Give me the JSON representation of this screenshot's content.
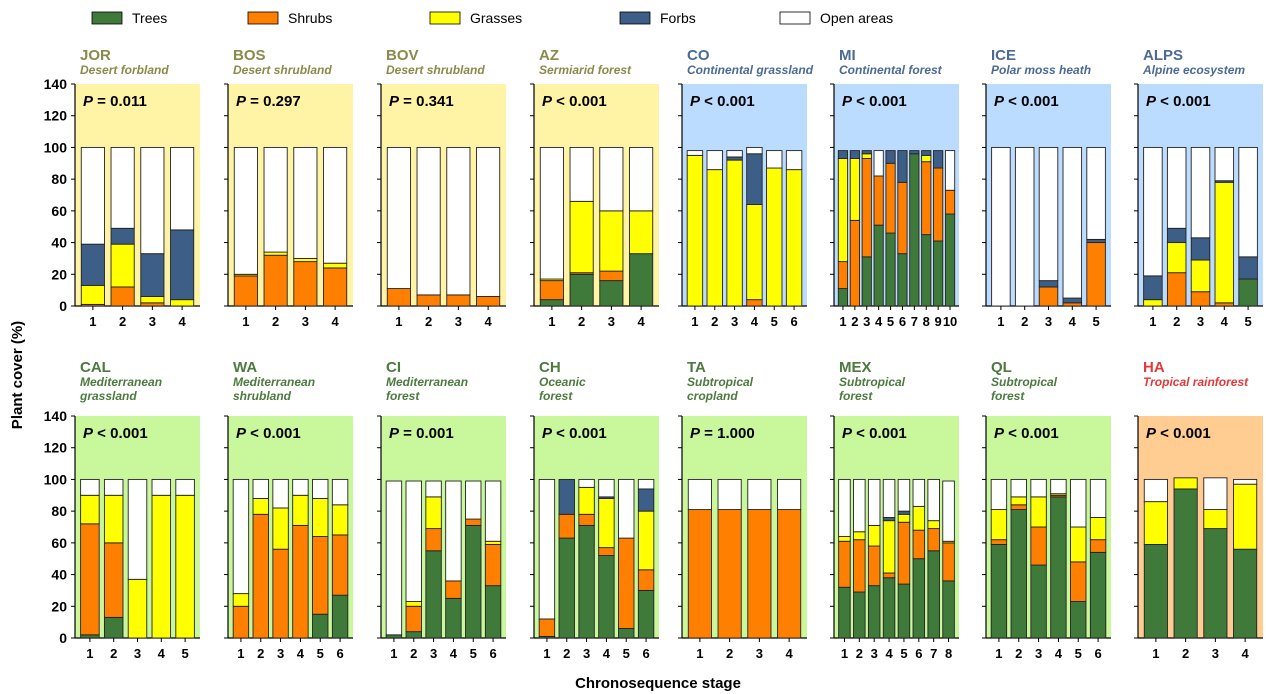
{
  "colors": {
    "Trees": "#3f7a3b",
    "Shrubs": "#ff7f00",
    "Grasses": "#ffff00",
    "Forbs": "#3d5e86",
    "Open areas": "#ffffff",
    "bg_desert": "#fff3a6",
    "bg_continental": "#bcdcff",
    "bg_med": "#c9f79b",
    "bg_tropical": "#ffcc92",
    "label_desert": "#8a8a4a",
    "label_continental": "#4c6a95",
    "label_med": "#4c7a3f",
    "label_tropical": "#e23a3a"
  },
  "legend": [
    "Trees",
    "Shrubs",
    "Grasses",
    "Forbs",
    "Open areas"
  ],
  "ylabel": "Plant cover (%)",
  "xlabel": "Chronosequence stage",
  "y_ticks": [
    "0",
    "20",
    "40",
    "60",
    "80",
    "100",
    "120",
    "140"
  ],
  "chart_data": {
    "type": "bar",
    "stacked": true,
    "ylim": [
      0,
      140
    ],
    "stack_order": [
      "Trees",
      "Shrubs",
      "Grasses",
      "Forbs",
      "Open areas"
    ],
    "panels": [
      {
        "code": "JOR",
        "desc": [
          "Desert forbland"
        ],
        "p": "0.011",
        "op": "=",
        "bg": "desert",
        "categories": [
          "1",
          "2",
          "3",
          "4"
        ],
        "bars": [
          [
            0,
            1,
            12,
            26,
            61
          ],
          [
            0,
            12,
            27,
            10,
            51
          ],
          [
            0,
            2,
            4,
            27,
            67
          ],
          [
            0,
            0,
            4,
            44,
            52
          ]
        ]
      },
      {
        "code": "BOS",
        "desc": [
          "Desert shrubland"
        ],
        "p": "0.297",
        "op": "=",
        "bg": "desert",
        "categories": [
          "1",
          "2",
          "3",
          "4"
        ],
        "bars": [
          [
            0,
            19,
            1,
            0,
            80
          ],
          [
            0,
            32,
            2,
            0,
            66
          ],
          [
            0,
            28,
            2,
            0,
            70
          ],
          [
            0,
            24,
            3,
            0,
            73
          ]
        ]
      },
      {
        "code": "BOV",
        "desc": [
          "Desert shrubland"
        ],
        "p": "0.341",
        "op": "=",
        "bg": "desert",
        "categories": [
          "1",
          "2",
          "3",
          "4"
        ],
        "bars": [
          [
            0,
            11,
            0,
            0,
            89
          ],
          [
            0,
            7,
            0,
            0,
            93
          ],
          [
            0,
            7,
            0,
            0,
            93
          ],
          [
            0,
            6,
            0,
            0,
            94
          ]
        ]
      },
      {
        "code": "AZ",
        "desc": [
          "Sermiarid forest"
        ],
        "p": "0.001",
        "op": "<",
        "bg": "desert",
        "categories": [
          "1",
          "2",
          "3",
          "4"
        ],
        "bars": [
          [
            4,
            12,
            1,
            0,
            83
          ],
          [
            20,
            1,
            45,
            0,
            34
          ],
          [
            16,
            6,
            38,
            0,
            40
          ],
          [
            33,
            0,
            27,
            0,
            40
          ]
        ]
      },
      {
        "code": "CO",
        "desc": [
          "Continental grassland"
        ],
        "p": "0.001",
        "op": "<",
        "bg": "continental",
        "categories": [
          "1",
          "2",
          "3",
          "4",
          "5",
          "6"
        ],
        "bars": [
          [
            0,
            0,
            95,
            0,
            3
          ],
          [
            0,
            0,
            86,
            0,
            12
          ],
          [
            0,
            0,
            92,
            2,
            4
          ],
          [
            0,
            4,
            60,
            32,
            4
          ],
          [
            0,
            0,
            87,
            0,
            11
          ],
          [
            0,
            0,
            86,
            0,
            12
          ]
        ]
      },
      {
        "code": "MI",
        "desc": [
          "Continental forest"
        ],
        "p": "0.001",
        "op": "<",
        "bg": "continental",
        "categories": [
          "1",
          "2",
          "3",
          "4",
          "5",
          "6",
          "7",
          "8",
          "9",
          "10"
        ],
        "bars": [
          [
            11,
            17,
            65,
            5,
            0
          ],
          [
            0,
            54,
            39,
            5,
            0
          ],
          [
            31,
            62,
            3,
            2,
            0
          ],
          [
            51,
            31,
            0,
            0,
            16
          ],
          [
            46,
            44,
            0,
            8,
            0
          ],
          [
            33,
            45,
            0,
            20,
            0
          ],
          [
            96,
            0,
            0,
            2,
            0
          ],
          [
            45,
            46,
            4,
            3,
            0
          ],
          [
            41,
            46,
            0,
            11,
            0
          ],
          [
            58,
            15,
            0,
            0,
            25
          ]
        ]
      },
      {
        "code": "ICE",
        "desc": [
          "Polar moss heath"
        ],
        "p": "0.001",
        "op": "<",
        "bg": "continental",
        "categories": [
          "1",
          "2",
          "3",
          "4",
          "5"
        ],
        "bars": [
          [
            0,
            0,
            0,
            0,
            100
          ],
          [
            0,
            0,
            0,
            0,
            100
          ],
          [
            0,
            12,
            0,
            4,
            84
          ],
          [
            0,
            2,
            0,
            3,
            95
          ],
          [
            0,
            40,
            0,
            2,
            58
          ]
        ]
      },
      {
        "code": "ALPS",
        "desc": [
          "Alpine ecosystem"
        ],
        "p": "0.001",
        "op": "<",
        "bg": "continental",
        "categories": [
          "1",
          "2",
          "3",
          "4",
          "5"
        ],
        "bars": [
          [
            0,
            0,
            4,
            15,
            81
          ],
          [
            0,
            21,
            19,
            9,
            51
          ],
          [
            0,
            9,
            20,
            14,
            57
          ],
          [
            0,
            2,
            76,
            1,
            21
          ],
          [
            17,
            0,
            0,
            14,
            69
          ]
        ]
      },
      {
        "code": "CAL",
        "desc": [
          "Mediterranean",
          "grassland"
        ],
        "p": "0.001",
        "op": "<",
        "bg": "med",
        "categories": [
          "1",
          "2",
          "3",
          "4",
          "5"
        ],
        "bars": [
          [
            2,
            70,
            18,
            0,
            10
          ],
          [
            13,
            47,
            30,
            0,
            10
          ],
          [
            0,
            0,
            37,
            0,
            63
          ],
          [
            0,
            0,
            90,
            0,
            10
          ],
          [
            0,
            0,
            90,
            0,
            10
          ]
        ]
      },
      {
        "code": "WA",
        "desc": [
          "Mediterranean",
          "shrubland"
        ],
        "p": "0.001",
        "op": "<",
        "bg": "med",
        "categories": [
          "1",
          "2",
          "3",
          "4",
          "5",
          "6"
        ],
        "bars": [
          [
            0,
            20,
            8,
            0,
            72
          ],
          [
            0,
            78,
            10,
            0,
            12
          ],
          [
            0,
            56,
            26,
            0,
            18
          ],
          [
            0,
            71,
            19,
            0,
            10
          ],
          [
            15,
            49,
            24,
            0,
            12
          ],
          [
            27,
            38,
            19,
            0,
            16
          ]
        ]
      },
      {
        "code": "CI",
        "desc": [
          "Mediterranean",
          "forest"
        ],
        "p": "0.001",
        "op": "=",
        "bg": "med",
        "categories": [
          "1",
          "2",
          "3",
          "4",
          "5",
          "6"
        ],
        "bars": [
          [
            2,
            0,
            0,
            0,
            97
          ],
          [
            4,
            16,
            3,
            0,
            76
          ],
          [
            55,
            14,
            20,
            0,
            10
          ],
          [
            25,
            11,
            0,
            0,
            63
          ],
          [
            71,
            4,
            0,
            0,
            24
          ],
          [
            33,
            26,
            2,
            0,
            38
          ]
        ]
      },
      {
        "code": "CH",
        "desc": [
          "Oceanic",
          "forest"
        ],
        "p": "0.001",
        "op": "<",
        "bg": "med",
        "categories": [
          "1",
          "2",
          "3",
          "4",
          "5",
          "6"
        ],
        "bars": [
          [
            1,
            11,
            0,
            0,
            88
          ],
          [
            63,
            15,
            0,
            22,
            0
          ],
          [
            71,
            7,
            17,
            0,
            5
          ],
          [
            52,
            5,
            31,
            1,
            11
          ],
          [
            6,
            57,
            0,
            0,
            37
          ],
          [
            30,
            13,
            37,
            14,
            6
          ]
        ]
      },
      {
        "code": "TA",
        "desc": [
          "Subtropical",
          "cropland"
        ],
        "p": "1.000",
        "op": "=",
        "bg": "med",
        "categories": [
          "1",
          "2",
          "3",
          "4"
        ],
        "bars": [
          [
            0,
            81,
            0,
            0,
            19
          ],
          [
            0,
            81,
            0,
            0,
            19
          ],
          [
            0,
            81,
            0,
            0,
            19
          ],
          [
            0,
            81,
            0,
            0,
            19
          ]
        ]
      },
      {
        "code": "MEX",
        "desc": [
          "Subtropical",
          "forest"
        ],
        "p": "0.001",
        "op": "<",
        "bg": "med",
        "categories": [
          "1",
          "2",
          "3",
          "4",
          "5",
          "6",
          "7",
          "8"
        ],
        "bars": [
          [
            32,
            29,
            3,
            0,
            36
          ],
          [
            29,
            33,
            5,
            0,
            33
          ],
          [
            33,
            25,
            13,
            0,
            29
          ],
          [
            38,
            3,
            33,
            2,
            24
          ],
          [
            34,
            39,
            5,
            2,
            20
          ],
          [
            50,
            18,
            15,
            0,
            17
          ],
          [
            55,
            14,
            5,
            0,
            26
          ],
          [
            36,
            24,
            1,
            0,
            38
          ]
        ]
      },
      {
        "code": "QL",
        "desc": [
          "Subtropical",
          "forest"
        ],
        "p": "0.001",
        "op": "<",
        "bg": "med",
        "categories": [
          "1",
          "2",
          "3",
          "4",
          "5",
          "6"
        ],
        "bars": [
          [
            59,
            3,
            19,
            0,
            19
          ],
          [
            81,
            3,
            5,
            0,
            11
          ],
          [
            46,
            24,
            19,
            0,
            11
          ],
          [
            89,
            1,
            1,
            0,
            9
          ],
          [
            23,
            25,
            22,
            0,
            30
          ],
          [
            54,
            8,
            14,
            0,
            24
          ]
        ]
      },
      {
        "code": "HA",
        "desc": [
          "Tropical rainforest"
        ],
        "p": "0.001",
        "op": "<",
        "bg": "tropical",
        "categories": [
          "1",
          "2",
          "3",
          "4"
        ],
        "bars": [
          [
            59,
            0,
            27,
            0,
            14
          ],
          [
            94,
            0,
            7,
            0,
            0
          ],
          [
            69,
            0,
            12,
            0,
            20
          ],
          [
            56,
            0,
            41,
            0,
            3
          ]
        ]
      }
    ]
  }
}
